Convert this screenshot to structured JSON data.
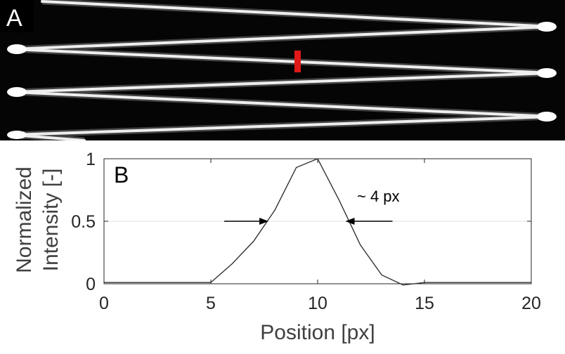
{
  "panel_a": {
    "label": "A",
    "colors": {
      "background": "#050505",
      "fiber": "#e8e8e8",
      "marker": "#e01818"
    }
  },
  "panel_b": {
    "label": "B"
  },
  "chart_data": {
    "type": "line",
    "xlabel": "Position [px]",
    "ylabel_lines": [
      "Normalized",
      "Intensity [-]"
    ],
    "xlim": [
      0,
      20
    ],
    "ylim": [
      0,
      1
    ],
    "x_ticks": [
      "0",
      "5",
      "10",
      "15",
      "20"
    ],
    "y_ticks": [
      "0",
      "0.5",
      "1"
    ],
    "series": [
      {
        "color": "#333333",
        "x": [
          0,
          1,
          2,
          3,
          4,
          5,
          6,
          7,
          8,
          9,
          10,
          11,
          12,
          13,
          14,
          15,
          16,
          17,
          18,
          19,
          20
        ],
        "y": [
          0.01,
          0.01,
          0.01,
          0.01,
          0.01,
          0.01,
          0.16,
          0.34,
          0.59,
          0.93,
          1.0,
          0.67,
          0.31,
          0.07,
          -0.01,
          0.01,
          0.01,
          0.01,
          0.01,
          0.01,
          0.01
        ]
      }
    ],
    "reference_lines": [
      {
        "y": 0.5,
        "color": "#e0e0e0"
      }
    ],
    "annotation": {
      "text": "~ 4 px",
      "arrow_left_tip_x": 7.7,
      "arrow_right_tip_x": 11.3,
      "arrow_y": 0.5
    }
  }
}
